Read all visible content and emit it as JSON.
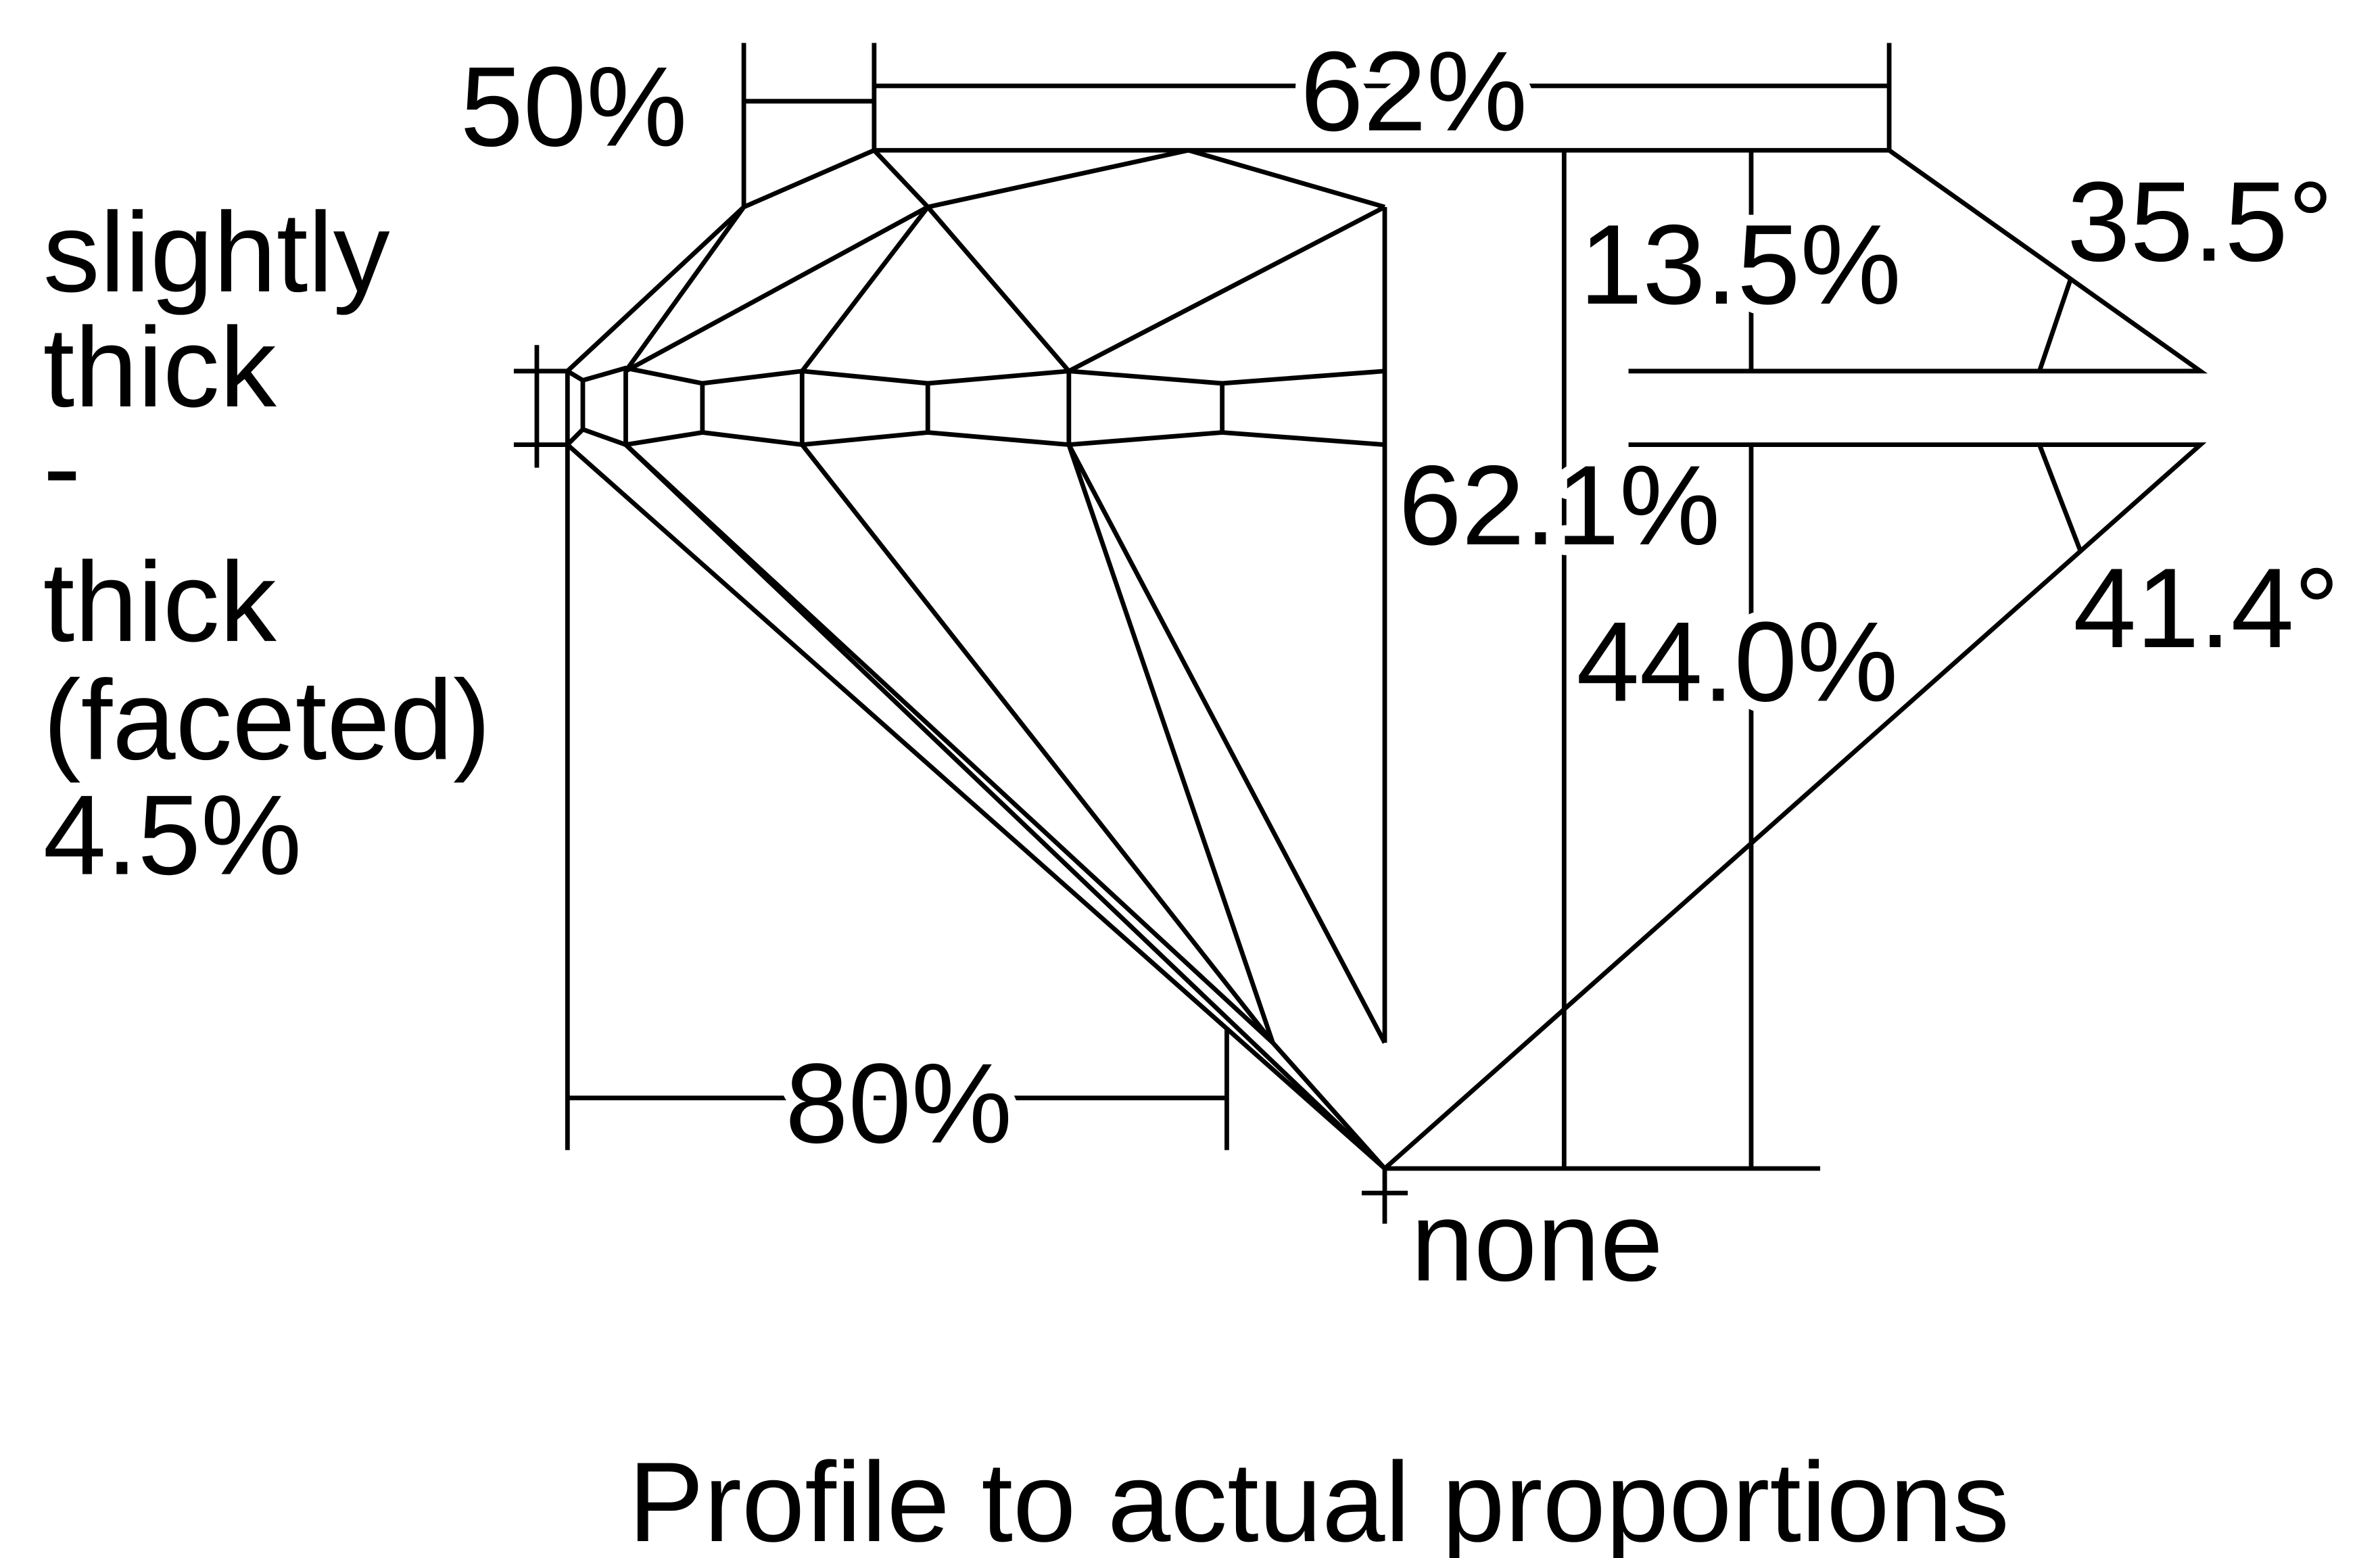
{
  "diagram": {
    "girdle": [
      "slightly",
      "thick",
      "-",
      "thick",
      "(faceted)",
      "4.5%"
    ],
    "star_length": "50%",
    "table": "62%",
    "crown_height": "13.5%",
    "crown_angle": "35.5°",
    "total_depth": "62.1%",
    "pavilion_angle": "41.4°",
    "pavilion_depth": "44.0%",
    "lower_half_length": "80%",
    "culet": "none",
    "caption": "Profile to actual proportions"
  }
}
